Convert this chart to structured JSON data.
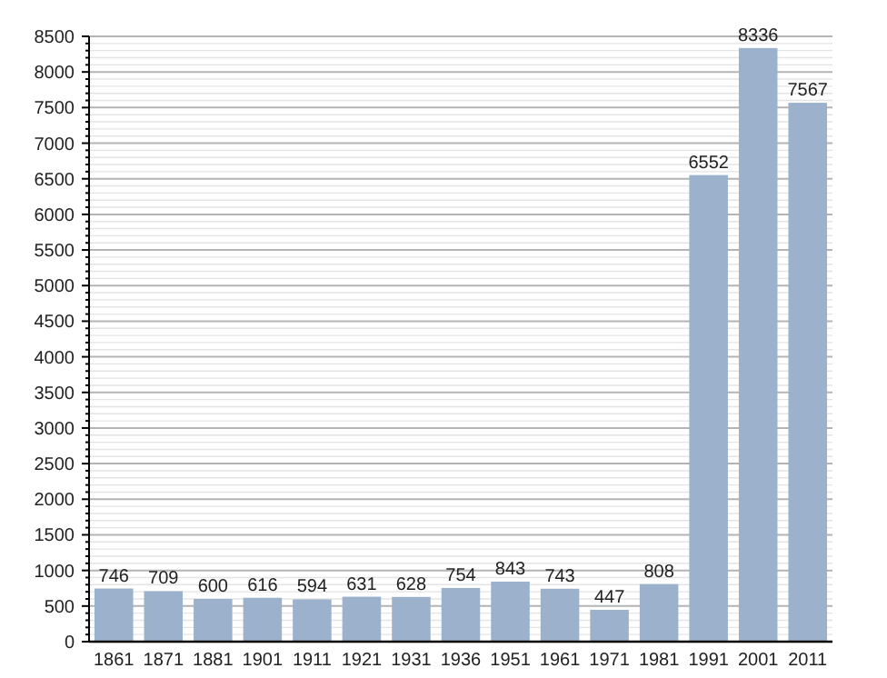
{
  "chart_data": {
    "type": "bar",
    "categories": [
      "1861",
      "1871",
      "1881",
      "1901",
      "1911",
      "1921",
      "1931",
      "1936",
      "1951",
      "1961",
      "1971",
      "1981",
      "1991",
      "2001",
      "2011"
    ],
    "values": [
      746,
      709,
      600,
      616,
      594,
      631,
      628,
      754,
      843,
      743,
      447,
      808,
      6552,
      8336,
      7567
    ],
    "color": "#9bb1cc",
    "data_labels": true,
    "grid": "y",
    "ylim": [
      0,
      8500
    ],
    "yticks": [
      0,
      {
        "value": 100,
        "label": null
      },
      {
        "value": 200,
        "label": null
      },
      {
        "value": 300,
        "label": null
      },
      {
        "value": 400,
        "label": null
      },
      500,
      {
        "value": 600,
        "label": null
      },
      {
        "value": 700,
        "label": null
      },
      {
        "value": 800,
        "label": null
      },
      {
        "value": 900,
        "label": null
      },
      1000,
      {
        "value": 1100,
        "label": null
      },
      {
        "value": 1200,
        "label": null
      },
      {
        "value": 1300,
        "label": null
      },
      {
        "value": 1400,
        "label": null
      },
      1500,
      {
        "value": 1600,
        "label": null
      },
      {
        "value": 1700,
        "label": null
      },
      {
        "value": 1800,
        "label": null
      },
      {
        "value": 1900,
        "label": null
      },
      2000,
      {
        "value": 2100,
        "label": null
      },
      {
        "value": 2200,
        "label": null
      },
      {
        "value": 2300,
        "label": null
      },
      {
        "value": 2400,
        "label": null
      },
      2500,
      {
        "value": 2600,
        "label": null
      },
      {
        "value": 2700,
        "label": null
      },
      {
        "value": 2800,
        "label": null
      },
      {
        "value": 2900,
        "label": null
      },
      3000,
      {
        "value": 3100,
        "label": null
      },
      {
        "value": 3200,
        "label": null
      },
      {
        "value": 3300,
        "label": null
      },
      {
        "value": 3400,
        "label": null
      },
      3500,
      {
        "value": 3600,
        "label": null
      },
      {
        "value": 3700,
        "label": null
      },
      {
        "value": 3800,
        "label": null
      },
      {
        "value": 3900,
        "label": null
      },
      4000,
      {
        "value": 4100,
        "label": null
      },
      {
        "value": 4200,
        "label": null
      },
      {
        "value": 4300,
        "label": null
      },
      {
        "value": 4400,
        "label": null
      },
      4500,
      {
        "value": 4600,
        "label": null
      },
      {
        "value": 4700,
        "label": null
      },
      {
        "value": 4800,
        "label": null
      },
      {
        "value": 4900,
        "label": null
      },
      5000,
      {
        "value": 5100,
        "label": null
      },
      {
        "value": 5200,
        "label": null
      },
      {
        "value": 5300,
        "label": null
      },
      {
        "value": 5400,
        "label": null
      },
      5500,
      {
        "value": 5600,
        "label": null
      },
      {
        "value": 5700,
        "label": null
      },
      {
        "value": 5800,
        "label": null
      },
      {
        "value": 5900,
        "label": null
      },
      6000,
      {
        "value": 6100,
        "label": null
      },
      {
        "value": 6200,
        "label": null
      },
      {
        "value": 6300,
        "label": null
      },
      {
        "value": 6400,
        "label": null
      },
      6500,
      {
        "value": 6600,
        "label": null
      },
      {
        "value": 6700,
        "label": null
      },
      {
        "value": 6800,
        "label": null
      },
      {
        "value": 6900,
        "label": null
      },
      7000,
      {
        "value": 7100,
        "label": null
      },
      {
        "value": 7200,
        "label": null
      },
      {
        "value": 7300,
        "label": null
      },
      {
        "value": 7400,
        "label": null
      },
      7500,
      {
        "value": 7600,
        "label": null
      },
      {
        "value": 7700,
        "label": null
      },
      {
        "value": 7800,
        "label": null
      },
      {
        "value": 7900,
        "label": null
      },
      8000,
      {
        "value": 8100,
        "label": null
      },
      {
        "value": 8200,
        "label": null
      },
      {
        "value": 8300,
        "label": null
      },
      {
        "value": 8400,
        "label": null
      },
      8500
    ]
  }
}
